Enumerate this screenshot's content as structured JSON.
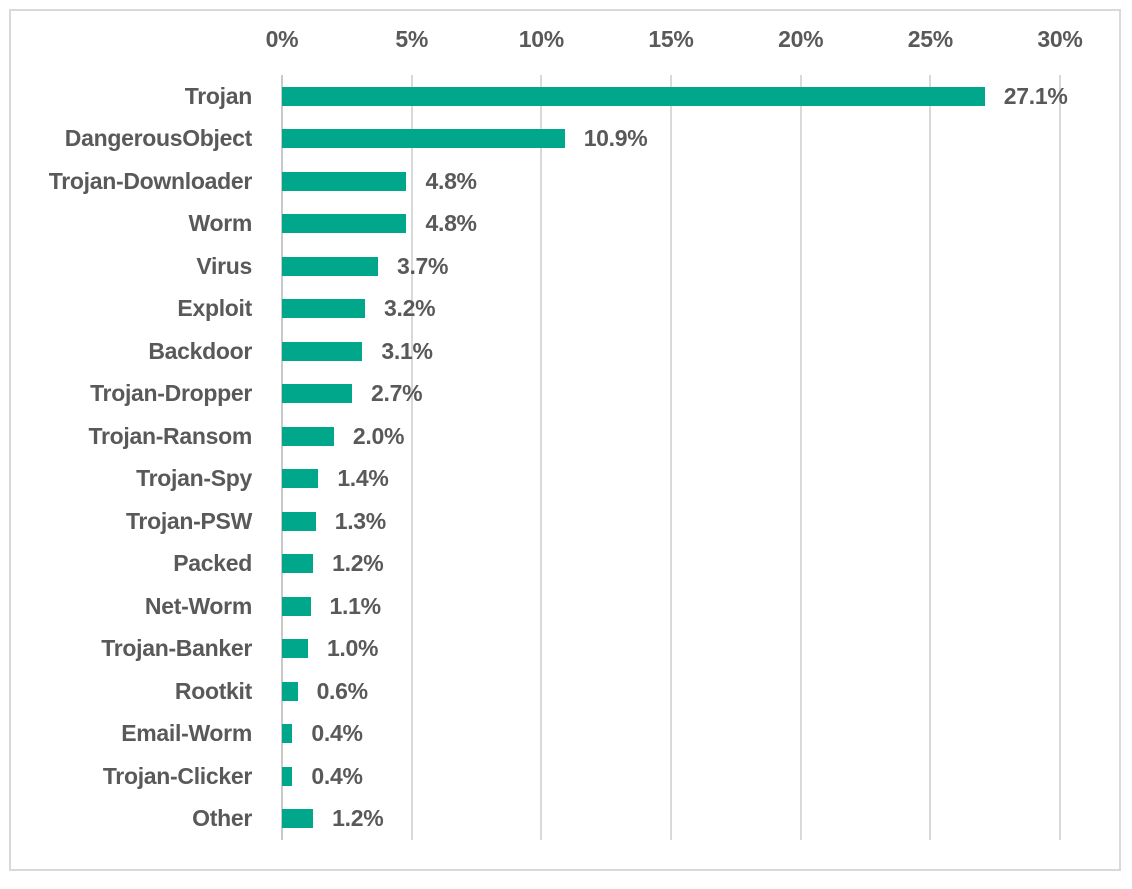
{
  "chart_data": {
    "type": "bar",
    "orientation": "horizontal",
    "title": "",
    "xlabel": "",
    "ylabel": "",
    "legend": "none",
    "grid": "vertical",
    "categories": [
      "Trojan",
      "DangerousObject",
      "Trojan-Downloader",
      "Worm",
      "Virus",
      "Exploit",
      "Backdoor",
      "Trojan-Dropper",
      "Trojan-Ransom",
      "Trojan-Spy",
      "Trojan-PSW",
      "Packed",
      "Net-Worm",
      "Trojan-Banker",
      "Rootkit",
      "Email-Worm",
      "Trojan-Clicker",
      "Other"
    ],
    "values": [
      27.1,
      10.9,
      4.8,
      4.8,
      3.7,
      3.2,
      3.1,
      2.7,
      2.0,
      1.4,
      1.3,
      1.2,
      1.1,
      1.0,
      0.6,
      0.4,
      0.4,
      1.2
    ],
    "value_labels": [
      "27.1%",
      "10.9%",
      "4.8%",
      "4.8%",
      "3.7%",
      "3.2%",
      "3.1%",
      "2.7%",
      "2.0%",
      "1.4%",
      "1.3%",
      "1.2%",
      "1.1%",
      "1.0%",
      "0.6%",
      "0.4%",
      "0.4%",
      "1.2%"
    ],
    "x_axis": {
      "position": "top",
      "min": 0,
      "max": 30,
      "tick_step": 5,
      "ticks": [
        "0%",
        "5%",
        "10%",
        "15%",
        "20%",
        "25%",
        "30%"
      ]
    },
    "colors": {
      "bar": "#00A78B",
      "text": "#595959",
      "gridline": "#D9D9D9",
      "axis_line": "#C9C9C9",
      "frame_border": "#D9D9D9",
      "background": "#FFFFFF"
    }
  }
}
